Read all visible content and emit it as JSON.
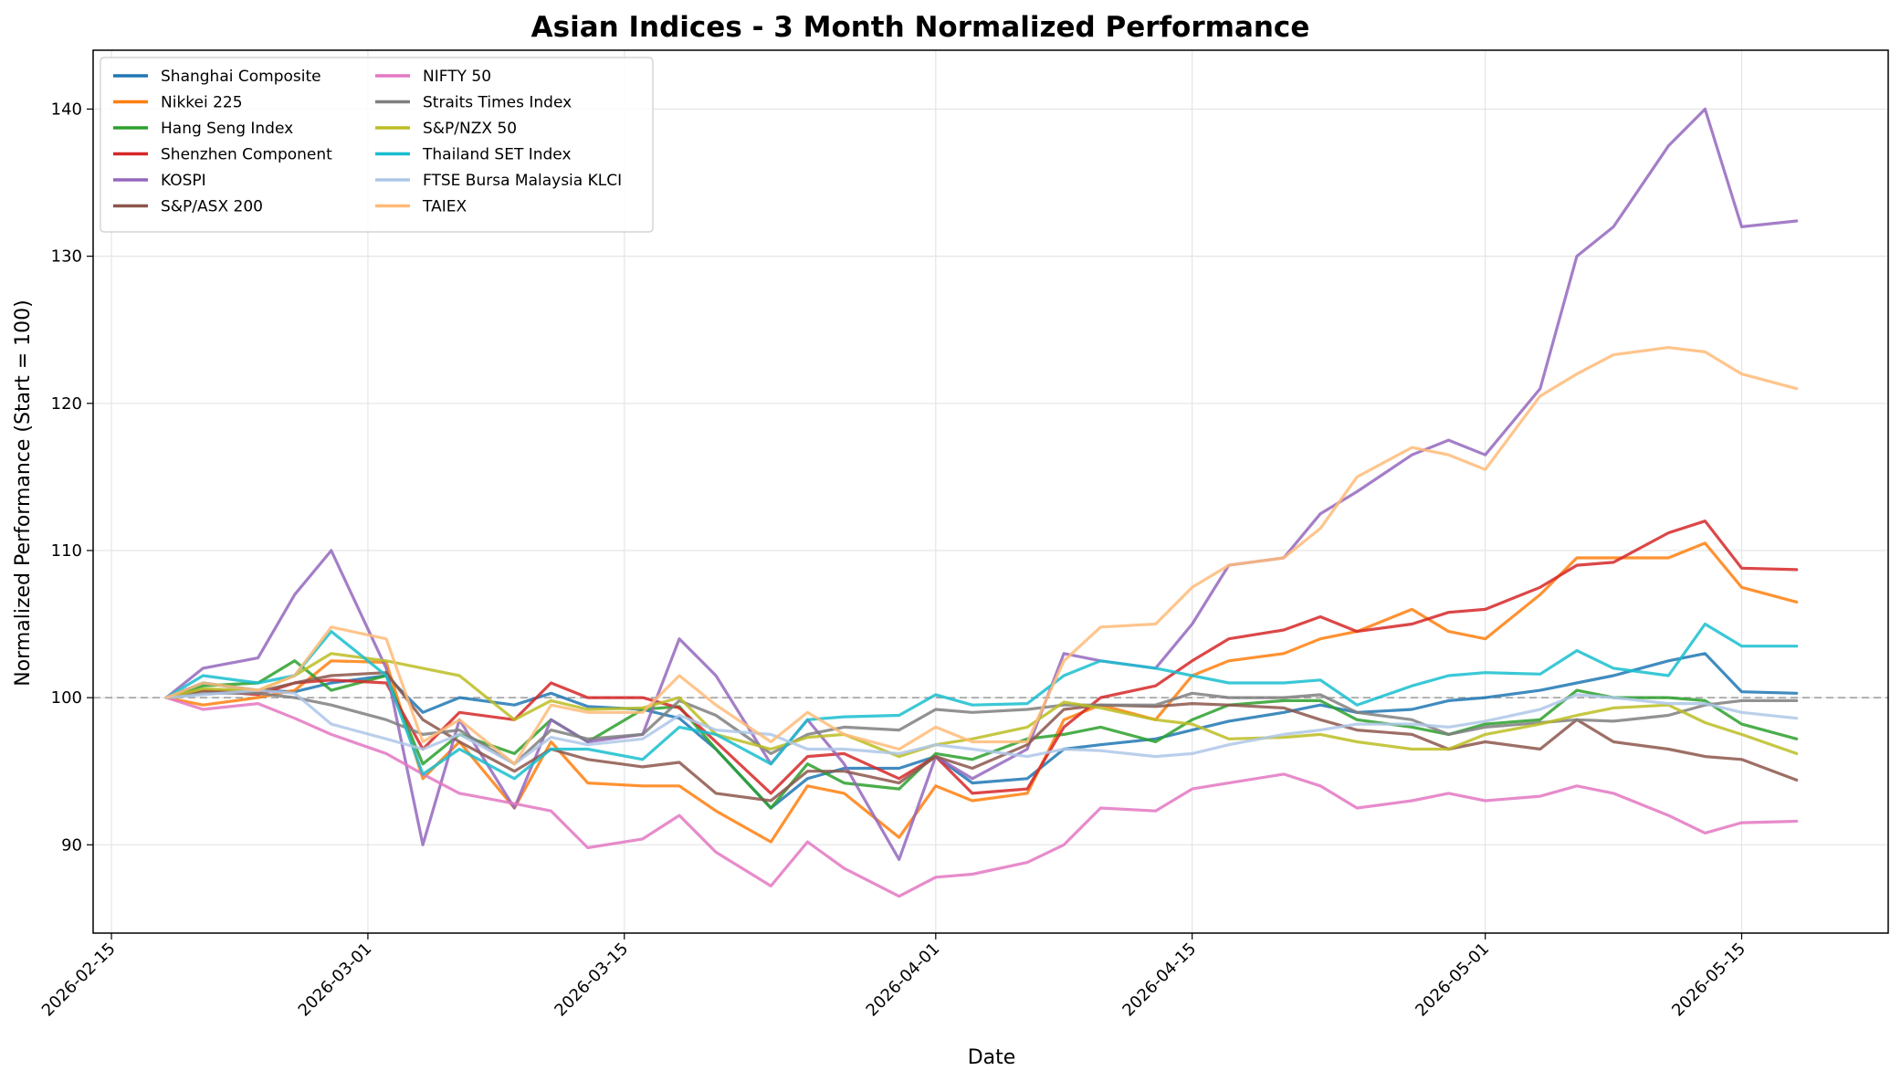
{
  "chart_data": {
    "type": "line",
    "title": "Asian Indices - 3 Month Normalized Performance",
    "xlabel": "Date",
    "ylabel": "Normalized Performance (Start = 100)",
    "xlim": [
      "2026-02-14",
      "2026-05-23"
    ],
    "ylim": [
      84,
      144
    ],
    "x_ticks": [
      "2026-02-15",
      "2026-03-01",
      "2026-03-15",
      "2026-04-01",
      "2026-04-15",
      "2026-05-01",
      "2026-05-15"
    ],
    "y_ticks": [
      90,
      100,
      110,
      120,
      130,
      140
    ],
    "baseline": 100,
    "grid": true,
    "legend_position": "top-left",
    "dates": [
      "2026-02-18",
      "2026-02-20",
      "2026-02-23",
      "2026-02-25",
      "2026-02-27",
      "2026-03-02",
      "2026-03-04",
      "2026-03-06",
      "2026-03-09",
      "2026-03-11",
      "2026-03-13",
      "2026-03-16",
      "2026-03-18",
      "2026-03-20",
      "2026-03-23",
      "2026-03-25",
      "2026-03-27",
      "2026-03-30",
      "2026-04-01",
      "2026-04-03",
      "2026-04-06",
      "2026-04-08",
      "2026-04-10",
      "2026-04-13",
      "2026-04-15",
      "2026-04-17",
      "2026-04-20",
      "2026-04-22",
      "2026-04-24",
      "2026-04-27",
      "2026-04-29",
      "2026-05-01",
      "2026-05-04",
      "2026-05-06",
      "2026-05-08",
      "2026-05-11",
      "2026-05-13",
      "2026-05-15",
      "2026-05-18"
    ],
    "series": [
      {
        "name": "Shanghai Composite",
        "color": "#1f77b4",
        "values": [
          100,
          101,
          100.5,
          100.4,
          101,
          101.5,
          99,
          100,
          99.5,
          100.3,
          99.4,
          99.2,
          98.6,
          96.5,
          92.5,
          94.5,
          95.2,
          95.2,
          96,
          94.2,
          94.5,
          96.5,
          96.8,
          97.2,
          97.8,
          98.4,
          99,
          99.5,
          99,
          99.2,
          99.8,
          100,
          100.5,
          101,
          101.5,
          102.5,
          103,
          100.4,
          100.3
        ]
      },
      {
        "name": "Nikkei 225",
        "color": "#ff7f0e",
        "values": [
          100,
          99.5,
          100,
          100.5,
          102.5,
          102.4,
          94.5,
          97,
          92.5,
          97,
          94.2,
          94,
          94,
          92.3,
          90.2,
          94,
          93.5,
          90.5,
          94,
          93,
          93.5,
          98.5,
          99.5,
          98.5,
          101.5,
          102.5,
          103,
          104,
          104.5,
          106,
          104.5,
          104,
          107,
          109.5,
          109.5,
          109.5,
          110.5,
          107.5,
          106.5
        ]
      },
      {
        "name": "Hang Seng Index",
        "color": "#2ca02c",
        "values": [
          100,
          100.8,
          101,
          102.5,
          100.5,
          101.5,
          95.5,
          97.5,
          96.2,
          98.5,
          97,
          99.2,
          99.4,
          96.5,
          92.5,
          95.5,
          94.2,
          93.8,
          96.2,
          95.8,
          97.2,
          97.5,
          98,
          97,
          98.5,
          99.5,
          99.8,
          99.8,
          98.5,
          98,
          97.5,
          98.2,
          98.5,
          100.5,
          100,
          100,
          99.8,
          98.2,
          97.2
        ]
      },
      {
        "name": "Shenzhen Component",
        "color": "#d62728",
        "values": [
          100,
          100.5,
          100.2,
          101,
          101.2,
          101,
          96.5,
          99,
          98.5,
          101,
          100,
          100,
          99.3,
          97,
          93.5,
          96,
          96.2,
          94.5,
          96,
          93.5,
          93.8,
          98,
          100,
          100.8,
          102.5,
          104,
          104.6,
          105.5,
          104.5,
          105,
          105.8,
          106,
          107.5,
          109,
          109.2,
          111.2,
          112,
          108.8,
          108.7
        ]
      },
      {
        "name": "KOSPI",
        "color": "#9467bd",
        "values": [
          100,
          102,
          102.7,
          107,
          110,
          102,
          90,
          98.5,
          92.5,
          98.5,
          97,
          97.5,
          104,
          101.5,
          95.5,
          98.5,
          95.5,
          89,
          96,
          94.5,
          96.5,
          103,
          102.5,
          102,
          105,
          109,
          109.5,
          112.5,
          114,
          116.5,
          117.5,
          116.5,
          121,
          130,
          132,
          137.5,
          140,
          132,
          132.4
        ]
      },
      {
        "name": "S&P/ASX 200",
        "color": "#8c564b",
        "values": [
          100,
          100.5,
          100.4,
          101,
          101.5,
          101.7,
          98.5,
          97,
          95,
          96.5,
          95.8,
          95.3,
          95.6,
          93.5,
          93,
          95,
          95,
          94.2,
          96,
          95.2,
          96.8,
          99.2,
          99.5,
          99.4,
          99.6,
          99.5,
          99.3,
          98.5,
          97.8,
          97.5,
          96.5,
          97,
          96.5,
          98.5,
          97,
          96.5,
          96,
          95.8,
          94.4
        ]
      },
      {
        "name": "NIFTY 50",
        "color": "#e377c2",
        "values": [
          100,
          99.2,
          99.6,
          98.6,
          97.5,
          96.2,
          94.8,
          93.5,
          92.8,
          92.3,
          89.8,
          90.4,
          92,
          89.5,
          87.2,
          90.2,
          88.4,
          86.5,
          87.8,
          88,
          88.8,
          90,
          92.5,
          92.3,
          93.8,
          94.2,
          94.8,
          94,
          92.5,
          93,
          93.5,
          93,
          93.3,
          94,
          93.5,
          92,
          90.8,
          91.5,
          91.6
        ]
      },
      {
        "name": "Straits Times Index",
        "color": "#7f7f7f",
        "values": [
          100,
          100.3,
          100.3,
          100,
          99.5,
          98.5,
          97.5,
          97.8,
          95.5,
          97.8,
          97.2,
          97.5,
          99.8,
          98.8,
          96.2,
          97.5,
          98,
          97.8,
          99.2,
          99,
          99.2,
          99.5,
          99.5,
          99.5,
          100.3,
          100,
          100,
          100.2,
          99,
          98.5,
          97.5,
          98,
          98.3,
          98.5,
          98.4,
          98.8,
          99.5,
          99.8,
          99.8
        ]
      },
      {
        "name": "S&P/NZX 50",
        "color": "#bcbd22",
        "values": [
          100,
          100.6,
          100.5,
          101.5,
          103,
          102.5,
          102,
          101.5,
          98.5,
          99.8,
          99.2,
          99.3,
          100,
          97.5,
          96.5,
          97.3,
          97.5,
          96,
          96.8,
          97.2,
          98,
          99.7,
          99.3,
          98.5,
          98.2,
          97.2,
          97.3,
          97.5,
          97,
          96.5,
          96.5,
          97.5,
          98.2,
          98.8,
          99.3,
          99.5,
          98.3,
          97.5,
          96.2
        ]
      },
      {
        "name": "Thailand SET Index",
        "color": "#17becf",
        "values": [
          100,
          101.5,
          101,
          101.5,
          104.5,
          101.5,
          94.8,
          96.5,
          94.5,
          96.5,
          96.5,
          95.8,
          98,
          97.5,
          95.5,
          98.5,
          98.7,
          98.8,
          100.2,
          99.5,
          99.6,
          101.5,
          102.5,
          102,
          101.5,
          101,
          101,
          101.2,
          99.5,
          100.8,
          101.5,
          101.7,
          101.6,
          103.2,
          102,
          101.5,
          105,
          103.5,
          103.5
        ]
      },
      {
        "name": "FTSE Bursa Malaysia KLCI",
        "color": "#aec7e8",
        "values": [
          100,
          100.2,
          100.5,
          100.3,
          98.2,
          97.2,
          96.5,
          97.5,
          95.5,
          97.3,
          96.8,
          97.2,
          98.8,
          97.8,
          97.5,
          96.5,
          96.5,
          96.2,
          96.8,
          96.5,
          96,
          96.5,
          96.4,
          96,
          96.2,
          96.8,
          97.5,
          97.8,
          98.2,
          98.2,
          98,
          98.4,
          99.2,
          100.2,
          100,
          99.6,
          99.6,
          99,
          98.6
        ]
      },
      {
        "name": "TAIEX",
        "color": "#ffbb78",
        "values": [
          100,
          101,
          100.5,
          101.5,
          104.8,
          104,
          97,
          98.5,
          95.5,
          99.5,
          99,
          99,
          101.5,
          99.5,
          97,
          99,
          97.5,
          96.5,
          98,
          97,
          97,
          102.5,
          104.8,
          105,
          107.5,
          109,
          109.5,
          111.5,
          115,
          117,
          116.5,
          115.5,
          120.5,
          122,
          123.3,
          123.8,
          123.5,
          122,
          121
        ]
      }
    ]
  }
}
